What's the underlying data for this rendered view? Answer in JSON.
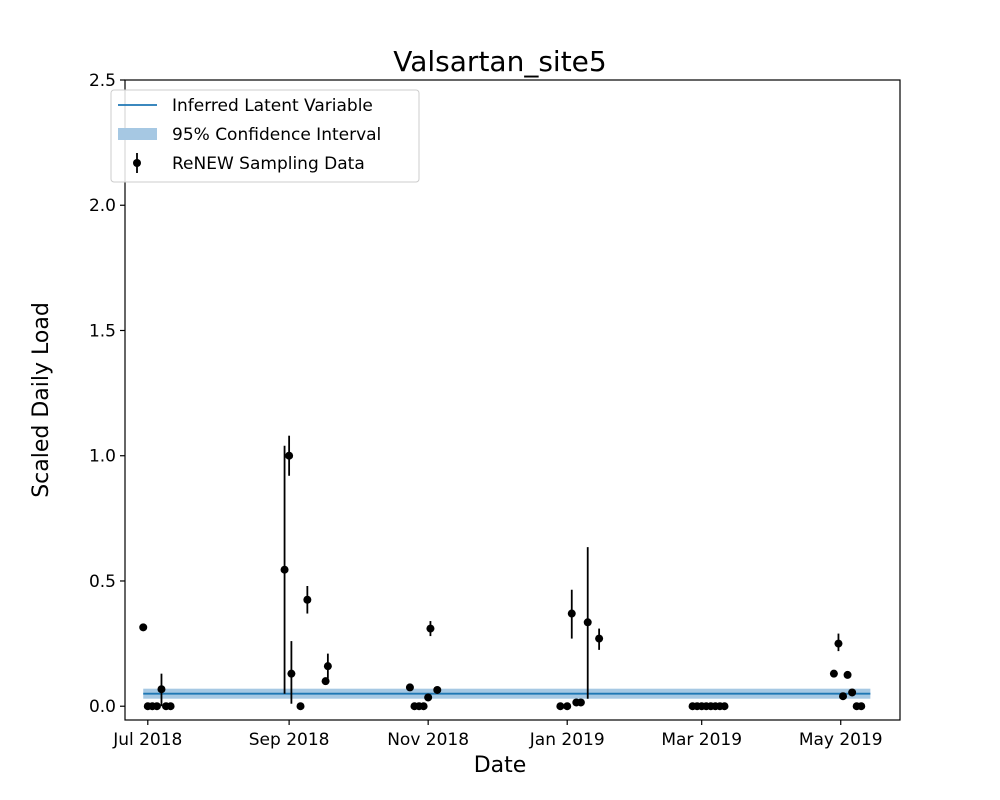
{
  "chart_data": {
    "type": "scatter",
    "title": "Valsartan_site5",
    "xlabel": "Date",
    "ylabel": "Scaled Daily Load",
    "xlim": [
      "2018-06-21",
      "2019-05-27"
    ],
    "ylim": [
      -0.055,
      2.5
    ],
    "x_ticks": [
      {
        "date": "2018-07-01",
        "label": "Jul 2018"
      },
      {
        "date": "2018-09-01",
        "label": "Sep 2018"
      },
      {
        "date": "2018-11-01",
        "label": "Nov 2018"
      },
      {
        "date": "2019-01-01",
        "label": "Jan 2019"
      },
      {
        "date": "2019-03-01",
        "label": "Mar 2019"
      },
      {
        "date": "2019-05-01",
        "label": "May 2019"
      }
    ],
    "y_ticks": [
      {
        "value": 0.0,
        "label": "0.0"
      },
      {
        "value": 0.5,
        "label": "0.5"
      },
      {
        "value": 1.0,
        "label": "1.0"
      },
      {
        "value": 1.5,
        "label": "1.5"
      },
      {
        "value": 2.0,
        "label": "2.0"
      },
      {
        "value": 2.5,
        "label": "2.5"
      }
    ],
    "grid": false,
    "legend_position": "top-left",
    "legend": [
      {
        "key": "latent",
        "label": "Inferred Latent Variable"
      },
      {
        "key": "ci",
        "label": "95% Confidence Interval"
      },
      {
        "key": "samples",
        "label": "ReNEW Sampling Data"
      }
    ],
    "colors": {
      "latent_line": "#1f77b4",
      "ci_band": "#a6c8e3",
      "points": "#000000"
    },
    "latent_variable": {
      "start": "2018-06-29",
      "end": "2019-05-14",
      "value": 0.05,
      "ci_lower": 0.03,
      "ci_upper": 0.07
    },
    "sampling_data": [
      {
        "date": "2018-06-29",
        "y": 0.315
      },
      {
        "date": "2018-07-01",
        "y": 0.0
      },
      {
        "date": "2018-07-03",
        "y": 0.0
      },
      {
        "date": "2018-07-05",
        "y": 0.0
      },
      {
        "date": "2018-07-07",
        "y": 0.068,
        "err": [
          0.0,
          0.13
        ]
      },
      {
        "date": "2018-07-09",
        "y": 0.0
      },
      {
        "date": "2018-07-11",
        "y": 0.0
      },
      {
        "date": "2018-08-30",
        "y": 0.545,
        "err": [
          0.05,
          1.04
        ]
      },
      {
        "date": "2018-09-01",
        "y": 1.0,
        "err": [
          0.92,
          1.08
        ]
      },
      {
        "date": "2018-09-02",
        "y": 0.13,
        "err": [
          0.01,
          0.26
        ]
      },
      {
        "date": "2018-09-06",
        "y": 0.0
      },
      {
        "date": "2018-09-09",
        "y": 0.425,
        "err": [
          0.37,
          0.48
        ]
      },
      {
        "date": "2018-09-17",
        "y": 0.1
      },
      {
        "date": "2018-09-18",
        "y": 0.16,
        "err": [
          0.11,
          0.21
        ]
      },
      {
        "date": "2018-10-24",
        "y": 0.075
      },
      {
        "date": "2018-10-26",
        "y": 0.0
      },
      {
        "date": "2018-10-28",
        "y": 0.0
      },
      {
        "date": "2018-10-30",
        "y": 0.0
      },
      {
        "date": "2018-11-01",
        "y": 0.035
      },
      {
        "date": "2018-11-02",
        "y": 0.31,
        "err": [
          0.28,
          0.34
        ]
      },
      {
        "date": "2018-11-05",
        "y": 0.065
      },
      {
        "date": "2018-12-29",
        "y": 0.0
      },
      {
        "date": "2019-01-01",
        "y": 0.0
      },
      {
        "date": "2019-01-03",
        "y": 0.37,
        "err": [
          0.27,
          0.465
        ]
      },
      {
        "date": "2019-01-05",
        "y": 0.015
      },
      {
        "date": "2019-01-07",
        "y": 0.015
      },
      {
        "date": "2019-01-10",
        "y": 0.335,
        "err": [
          0.03,
          0.635
        ]
      },
      {
        "date": "2019-01-15",
        "y": 0.27,
        "err": [
          0.225,
          0.31
        ]
      },
      {
        "date": "2019-02-25",
        "y": 0.0
      },
      {
        "date": "2019-02-27",
        "y": 0.0
      },
      {
        "date": "2019-03-01",
        "y": 0.0
      },
      {
        "date": "2019-03-03",
        "y": 0.0
      },
      {
        "date": "2019-03-05",
        "y": 0.0
      },
      {
        "date": "2019-03-07",
        "y": 0.0
      },
      {
        "date": "2019-03-09",
        "y": 0.0
      },
      {
        "date": "2019-03-11",
        "y": 0.0
      },
      {
        "date": "2019-04-28",
        "y": 0.13
      },
      {
        "date": "2019-04-30",
        "y": 0.25,
        "err": [
          0.22,
          0.29
        ]
      },
      {
        "date": "2019-05-02",
        "y": 0.04
      },
      {
        "date": "2019-05-04",
        "y": 0.125
      },
      {
        "date": "2019-05-06",
        "y": 0.055
      },
      {
        "date": "2019-05-08",
        "y": 0.0
      },
      {
        "date": "2019-05-10",
        "y": 0.0
      }
    ]
  }
}
